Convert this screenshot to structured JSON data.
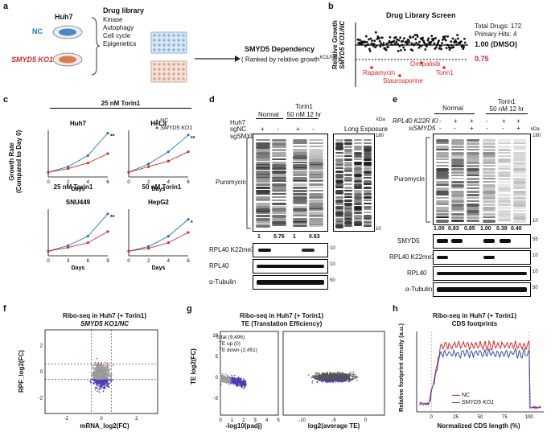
{
  "panels": {
    "a": {
      "label": "a",
      "cell_line": "Huh7",
      "nc_label": "NC",
      "ko_label": "SMYD5 KO1",
      "library_title": "Drug library",
      "library_items": [
        "Kinase",
        "Autophagy",
        "Cell cycle",
        "Epigenetics"
      ],
      "result_title": "SMYD5 Dependency",
      "result_sub": "( Ranked by relative growth",
      "result_sup": "KO1/NC",
      "result_end": ")"
    },
    "b": {
      "label": "b",
      "title": "Drug Library Screen",
      "total": "Total Drugs: 172",
      "hits": "Primary Hits: 4",
      "ylabel1": "Relative Growth",
      "ylabel2": "SMYD5 KO1/NC",
      "line1": "1.00 (DMSO)",
      "line2": "0.75",
      "hit_labels": [
        "Rapamycin",
        "Staurosporine",
        "Omipalisib",
        "Torin1"
      ]
    },
    "c": {
      "label": "c",
      "header1": "25 nM Torin1",
      "header2": "25 nM Torin1",
      "header3": "50 nM Torin1",
      "legend_nc": "NC",
      "legend_ko": "SMYD5 KO1",
      "ylabel1": "Growth Rate",
      "ylabel2": "(Compared to Day 0)",
      "xlabel": "Days",
      "sig": [
        "**",
        "**",
        "**",
        "*"
      ]
    },
    "d": {
      "label": "d",
      "cell": "Huh7",
      "normal": "Normal",
      "torin": "Torin1",
      "torin_dose": "50 nM 12 hr",
      "row1": "sgNC",
      "row2": "sgSMYD5",
      "signs1": [
        "+",
        "-",
        "+",
        "-"
      ],
      "signs2": [
        "-",
        "+",
        "-",
        "+"
      ],
      "long_exposure": "Long Exposure",
      "kda": "kDa",
      "puromycin": "Puromycin",
      "values": [
        "1",
        "0.76",
        "1",
        "0.63"
      ],
      "blots": [
        "RPL40 K22me3",
        "RPL40",
        "α-Tubulin"
      ],
      "markers": [
        "180",
        "10",
        "10",
        "10",
        "50"
      ]
    },
    "e": {
      "label": "e",
      "normal": "Normal",
      "torin": "Torin1",
      "torin_dose": "50 nM  12 hr",
      "row1": "RPL40 K22R KI",
      "row2": "siSMYD5",
      "signs1": [
        "-",
        "+",
        "+",
        "-",
        "+",
        "+"
      ],
      "signs2": [
        "-",
        "-",
        "+",
        "-",
        "-",
        "+"
      ],
      "kda": "kDa",
      "puromycin": "Puromycin",
      "values": [
        "1.00",
        "0.83",
        "0.85",
        "1.00",
        "0.39",
        "0.40"
      ],
      "blots": [
        "SMYD5",
        "RPL40 K22me3",
        "RPL40",
        "α-Tubulin"
      ],
      "markers": [
        "180",
        "10",
        "55",
        "10",
        "10",
        "50"
      ]
    },
    "f": {
      "label": "f",
      "title1": "Ribo-seq in Huh7 (+ Torin1)",
      "title2": "SMYD5 KO1/NC",
      "ylabel": "RPF_log2(FC)",
      "xlabel": "mRNA_log2(FC)",
      "yticks": [
        "2",
        "0",
        "-2"
      ],
      "xticks": [
        "-2",
        "0",
        "2"
      ]
    },
    "g": {
      "label": "g",
      "title1": "Ribo-seq in Huh7 (+ Torin1)",
      "title2": "TE (Translation Efficiency)",
      "ylabel": "TE log2(FC)",
      "xlabel1": "-log10(padj)",
      "xlabel2": "log2(average TE)",
      "legend": [
        "Total (9,496)",
        "TE up (0)",
        "TE down (2,451)"
      ],
      "yticks": [
        "10",
        "5",
        "0",
        "-5"
      ],
      "xticks1": [
        "0",
        "1",
        "2",
        "3",
        "4",
        "5"
      ],
      "xticks2": [
        "-10",
        "-5",
        "0"
      ]
    },
    "h": {
      "label": "h",
      "title1": "Ribo-seq in Huh7 (+ Torin1)",
      "title2": "CDS footprints",
      "ylabel": "Relative footprint density (a.u.)",
      "xlabel": "Normalized CDS length (%)",
      "legend_nc": "NC",
      "legend_ko": "SMYD5 KO1",
      "xticks": [
        "0",
        "25",
        "50",
        "75",
        "100"
      ]
    }
  },
  "colors": {
    "nc": "#1f76b4",
    "ko": "#d42a2a",
    "te_down": "#4b3fb4",
    "te_up": "#e03a2a",
    "grey": "#9a9a9a"
  }
}
